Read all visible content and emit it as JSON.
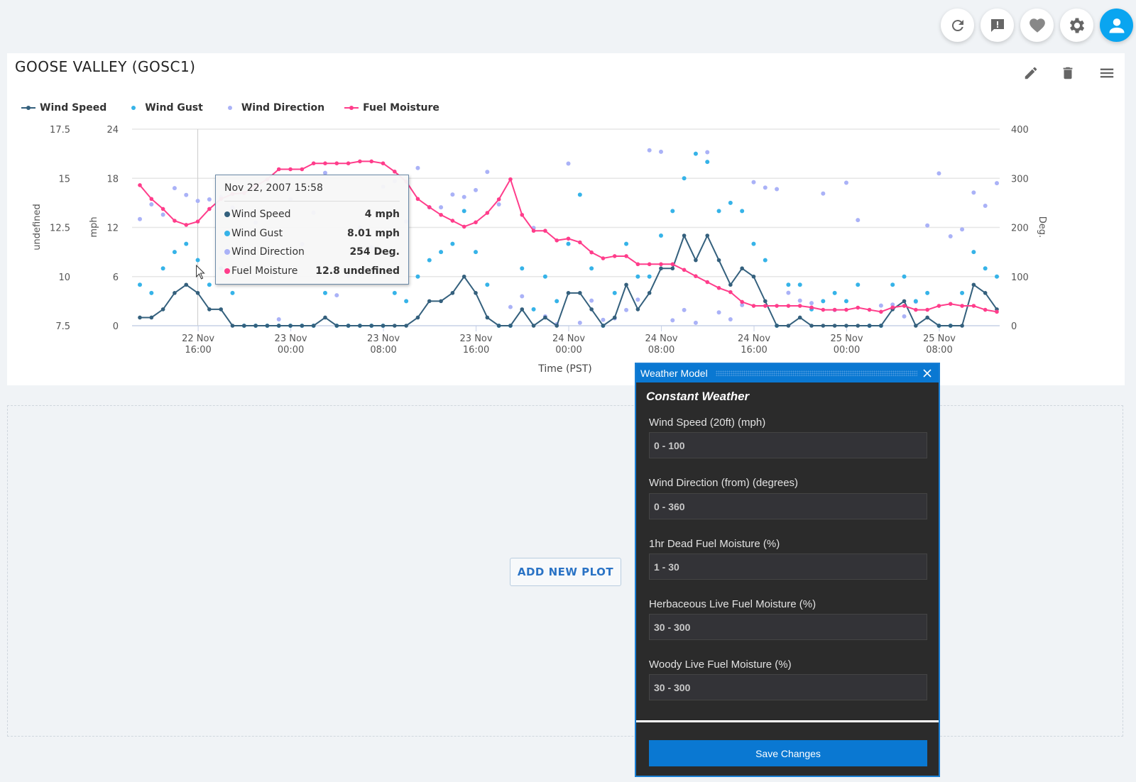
{
  "toolbar": {
    "buttons": [
      {
        "name": "refresh-button",
        "icon": "refresh-icon"
      },
      {
        "name": "feedback-button",
        "icon": "feedback-icon"
      },
      {
        "name": "favorite-button",
        "icon": "heart-icon"
      },
      {
        "name": "settings-button",
        "icon": "gear-icon"
      },
      {
        "name": "user-button",
        "icon": "user-icon"
      }
    ],
    "user_color": "#0aa5f0"
  },
  "panel": {
    "title": "GOOSE VALLEY (GOSC1)",
    "actions": [
      "edit-icon",
      "trash-icon",
      "menu-icon"
    ]
  },
  "chart_data": {
    "type": "line",
    "xlabel": "Time (PST)",
    "y_axes": [
      {
        "label": "undefined",
        "ticks": [
          "17.5",
          "15",
          "12.5",
          "10",
          "7.5"
        ],
        "range": [
          7.5,
          17.5
        ],
        "side": "left"
      },
      {
        "label": "mph",
        "ticks": [
          "24",
          "18",
          "12",
          "6",
          "0"
        ],
        "range": [
          0,
          24
        ],
        "side": "left"
      },
      {
        "label": "Deg.",
        "ticks": [
          "400",
          "300",
          "200",
          "100",
          "0"
        ],
        "range": [
          0,
          400
        ],
        "side": "right"
      }
    ],
    "grid": true,
    "legend_placement": "top-left",
    "x_ticks": [
      {
        "date": "22 Nov",
        "time": "16:00",
        "value": "2007-11-22T16:00"
      },
      {
        "date": "23 Nov",
        "time": "00:00",
        "value": "2007-11-23T00:00"
      },
      {
        "date": "23 Nov",
        "time": "08:00",
        "value": "2007-11-23T08:00"
      },
      {
        "date": "23 Nov",
        "time": "16:00",
        "value": "2007-11-23T16:00"
      },
      {
        "date": "24 Nov",
        "time": "00:00",
        "value": "2007-11-24T00:00"
      },
      {
        "date": "24 Nov",
        "time": "08:00",
        "value": "2007-11-24T08:00"
      },
      {
        "date": "24 Nov",
        "time": "16:00",
        "value": "2007-11-24T16:00"
      },
      {
        "date": "25 Nov",
        "time": "00:00",
        "value": "2007-11-25T00:00"
      },
      {
        "date": "25 Nov",
        "time": "08:00",
        "value": "2007-11-25T08:00"
      }
    ],
    "x": [
      "2007-11-22T10:58",
      "2007-11-22T11:58",
      "2007-11-22T12:58",
      "2007-11-22T13:58",
      "2007-11-22T14:58",
      "2007-11-22T15:58",
      "2007-11-22T16:58",
      "2007-11-22T17:58",
      "2007-11-22T18:58",
      "2007-11-22T19:58",
      "2007-11-22T20:58",
      "2007-11-22T21:58",
      "2007-11-22T22:58",
      "2007-11-22T23:58",
      "2007-11-23T00:58",
      "2007-11-23T01:58",
      "2007-11-23T02:58",
      "2007-11-23T03:58",
      "2007-11-23T04:58",
      "2007-11-23T05:58",
      "2007-11-23T06:58",
      "2007-11-23T07:58",
      "2007-11-23T08:58",
      "2007-11-23T09:58",
      "2007-11-23T10:58",
      "2007-11-23T11:58",
      "2007-11-23T12:58",
      "2007-11-23T13:58",
      "2007-11-23T14:58",
      "2007-11-23T15:58",
      "2007-11-23T16:58",
      "2007-11-23T17:58",
      "2007-11-23T18:58",
      "2007-11-23T19:58",
      "2007-11-23T20:58",
      "2007-11-23T21:58",
      "2007-11-23T22:58",
      "2007-11-23T23:58",
      "2007-11-24T00:58",
      "2007-11-24T01:58",
      "2007-11-24T02:58",
      "2007-11-24T03:58",
      "2007-11-24T04:58",
      "2007-11-24T05:58",
      "2007-11-24T06:58",
      "2007-11-24T07:58",
      "2007-11-24T08:58",
      "2007-11-24T09:58",
      "2007-11-24T10:58",
      "2007-11-24T11:58",
      "2007-11-24T12:58",
      "2007-11-24T13:58",
      "2007-11-24T14:58",
      "2007-11-24T15:58",
      "2007-11-24T16:58",
      "2007-11-24T17:58",
      "2007-11-24T18:58",
      "2007-11-24T19:58",
      "2007-11-24T20:58",
      "2007-11-24T21:58",
      "2007-11-24T22:58",
      "2007-11-24T23:58",
      "2007-11-25T00:58",
      "2007-11-25T01:58",
      "2007-11-25T02:58",
      "2007-11-25T03:58",
      "2007-11-25T04:58",
      "2007-11-25T05:58",
      "2007-11-25T06:58",
      "2007-11-25T07:58",
      "2007-11-25T08:58",
      "2007-11-25T09:58",
      "2007-11-25T10:58",
      "2007-11-25T11:58",
      "2007-11-25T12:58"
    ],
    "series": [
      {
        "name": "Wind Speed",
        "kind": "line",
        "axis": "mph",
        "color": "#34607d",
        "values": [
          1,
          1,
          2,
          4,
          5,
          4,
          2,
          2,
          0,
          0,
          0,
          0,
          0,
          0,
          0,
          0,
          1,
          0,
          0,
          0,
          0,
          0,
          0,
          0,
          1,
          3,
          3,
          4,
          6,
          4,
          1,
          0,
          0,
          2,
          0,
          1,
          0,
          4,
          4,
          2,
          0,
          1,
          5,
          2,
          4,
          7,
          7,
          11,
          8,
          11,
          8,
          5,
          7,
          6,
          3,
          0,
          0,
          1,
          0,
          0,
          0,
          0,
          0,
          0,
          0,
          2,
          3,
          0,
          1,
          0,
          0,
          0,
          5,
          4,
          2
        ]
      },
      {
        "name": "Wind Gust",
        "kind": "scatter",
        "axis": "mph",
        "color": "#36b3e8",
        "values": [
          5,
          4,
          7,
          9,
          10,
          8.01,
          5,
          7,
          4,
          0,
          0,
          0,
          0,
          0,
          0,
          0,
          4,
          0,
          0,
          0,
          0,
          0,
          4,
          3,
          6,
          8,
          9,
          10,
          14,
          9,
          5,
          0,
          0,
          7,
          2,
          6,
          3,
          10,
          16,
          7,
          0,
          4,
          10,
          6,
          6,
          11,
          14,
          18,
          21,
          20,
          14,
          15,
          14,
          10,
          8,
          0,
          5,
          5,
          2,
          3,
          4,
          3,
          5,
          0,
          0,
          5,
          6,
          3,
          4,
          0,
          0,
          4,
          9,
          7,
          6
        ]
      },
      {
        "name": "Wind Direction",
        "kind": "scatter",
        "axis": "Deg.",
        "color": "#aab2f7",
        "values": [
          217,
          247,
          226,
          280,
          266,
          254,
          257,
          262,
          240,
          225,
          210,
          181,
          13,
          257,
          166,
          230,
          311,
          62,
          101,
          200,
          160,
          283,
          294,
          212,
          321,
          241,
          241,
          267,
          262,
          276,
          313,
          247,
          38,
          60,
          199,
          19,
          3,
          330,
          6,
          51,
          12,
          15,
          32,
          53,
          357,
          354,
          11,
          32,
          6,
          353,
          27,
          13,
          42,
          292,
          281,
          278,
          67,
          51,
          46,
          269,
          32,
          291,
          215,
          0,
          41,
          43,
          19,
          49,
          204,
          310,
          182,
          196,
          271,
          244,
          290
        ]
      },
      {
        "name": "Fuel Moisture",
        "kind": "line",
        "axis": "undefined",
        "color": "#ff3d8b",
        "values": [
          14.65,
          13.95,
          13.44,
          12.84,
          12.63,
          12.8,
          13.44,
          13.95,
          14.2,
          14.25,
          14.6,
          14.95,
          15.46,
          15.46,
          15.46,
          15.76,
          15.76,
          15.76,
          15.76,
          15.86,
          15.86,
          15.76,
          15.34,
          14.83,
          13.95,
          13.53,
          13.14,
          12.84,
          12.54,
          12.76,
          13.24,
          13.93,
          14.95,
          13.14,
          12.33,
          12.33,
          11.84,
          11.93,
          11.74,
          11.23,
          10.93,
          11.04,
          11.04,
          10.63,
          10.63,
          10.63,
          10.63,
          10.34,
          10.02,
          9.72,
          9.42,
          9.21,
          8.71,
          8.51,
          8.51,
          8.51,
          8.51,
          8.51,
          8.43,
          8.31,
          8.31,
          8.31,
          8.42,
          8.31,
          8.21,
          8.43,
          8.51,
          8.31,
          8.31,
          8.51,
          8.61,
          8.51,
          8.51,
          8.31,
          8.21
        ]
      }
    ],
    "highlight_index": 5
  },
  "tooltip": {
    "time": "Nov 22, 2007 15:58",
    "rows": [
      {
        "label": "Wind Speed",
        "value": "4 mph",
        "color": "#34607d"
      },
      {
        "label": "Wind Gust",
        "value": "8.01 mph",
        "color": "#36b3e8"
      },
      {
        "label": "Wind Direction",
        "value": "254 Deg.",
        "color": "#aab2f7"
      },
      {
        "label": "Fuel Moisture",
        "value": "12.8 undefined",
        "color": "#ff3d8b"
      }
    ]
  },
  "add_plot_label": "ADD NEW PLOT",
  "dialog": {
    "title": "Weather Model",
    "subtitle": "Constant Weather",
    "fields": [
      {
        "label": "Wind Speed (20ft) (mph)",
        "placeholder": "0 - 100"
      },
      {
        "label": "Wind Direction (from) (degrees)",
        "placeholder": "0 - 360"
      },
      {
        "label": "1hr Dead Fuel Moisture (%)",
        "placeholder": "1 - 30"
      },
      {
        "label": "Herbaceous Live Fuel Moisture (%)",
        "placeholder": "30 - 300"
      },
      {
        "label": "Woody Live Fuel Moisture (%)",
        "placeholder": "30 - 300"
      }
    ],
    "save_label": "Save Changes",
    "accent": "#0a78d2"
  }
}
